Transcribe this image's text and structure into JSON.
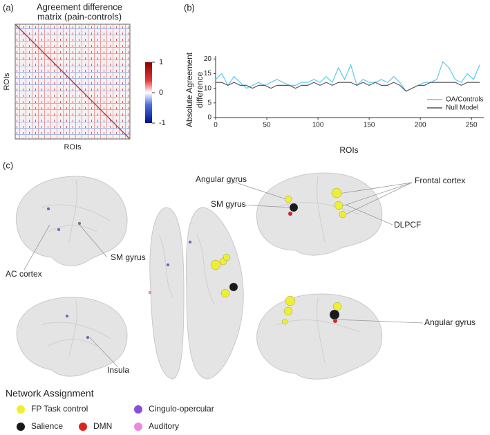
{
  "panel_a": {
    "panel_label": "(a)",
    "title_lines": [
      "Agreement difference",
      "matrix (pain-controls)"
    ],
    "x_label": "ROIs",
    "y_label": "ROIs",
    "colorbar_ticks": [
      1,
      0,
      -1
    ]
  },
  "chart_data": {
    "type": "line",
    "panel_label": "(b)",
    "x_label": "ROIs",
    "y_label_lines": [
      "Absolute Agreement",
      "difference"
    ],
    "x": [
      0,
      6,
      12,
      18,
      24,
      30,
      36,
      42,
      48,
      54,
      60,
      66,
      72,
      78,
      84,
      90,
      96,
      102,
      108,
      114,
      120,
      126,
      132,
      138,
      144,
      150,
      156,
      162,
      168,
      174,
      180,
      186,
      192,
      198,
      204,
      210,
      216,
      222,
      228,
      234,
      240,
      246,
      252,
      258
    ],
    "series": [
      {
        "name": "OA/Controls",
        "color": "#5bc8f0",
        "values": [
          13,
          15,
          11,
          14,
          12,
          10,
          11,
          12,
          11,
          12,
          13,
          12,
          11,
          11,
          12,
          12,
          13,
          12,
          14,
          12,
          17,
          13,
          18,
          11,
          13,
          12,
          12,
          13,
          12,
          14,
          12,
          9,
          10,
          11,
          12,
          12,
          13,
          19,
          17,
          13,
          12,
          15,
          13,
          18
        ]
      },
      {
        "name": "Null Model",
        "color": "#555555",
        "values": [
          12,
          12,
          11,
          12,
          11,
          11,
          10,
          11,
          11,
          10,
          11,
          11,
          11,
          10,
          11,
          11,
          12,
          11,
          12,
          11,
          12,
          12,
          12,
          11,
          12,
          11,
          12,
          11,
          11,
          12,
          11,
          9,
          10,
          11,
          11,
          12,
          12,
          12,
          12,
          12,
          11,
          12,
          12,
          12
        ]
      }
    ],
    "xlim": [
      0,
      262
    ],
    "xticks": [
      0,
      50,
      100,
      150,
      200,
      250
    ],
    "ylim": [
      0,
      21
    ],
    "yticks": [
      0,
      5,
      10,
      15,
      20
    ],
    "legend": "lower right"
  },
  "panel_c": {
    "panel_label": "(c)",
    "annotations": [
      "Angular gyrus",
      "SM gyrus",
      "Frontal cortex",
      "DLPCF",
      "SM gyrus",
      "AC cortex",
      "Insula",
      "Angular gyrus"
    ],
    "legend_title": "Network Assignment",
    "networks": [
      {
        "name": "FP Task control",
        "color": "#eeee33"
      },
      {
        "name": "Cingulo-opercular",
        "color": "#8a4fd8"
      },
      {
        "name": "Salience",
        "color": "#1a1a1a"
      },
      {
        "name": "DMN",
        "color": "#dd2222"
      },
      {
        "name": "Auditory",
        "color": "#ee88dd"
      }
    ]
  }
}
